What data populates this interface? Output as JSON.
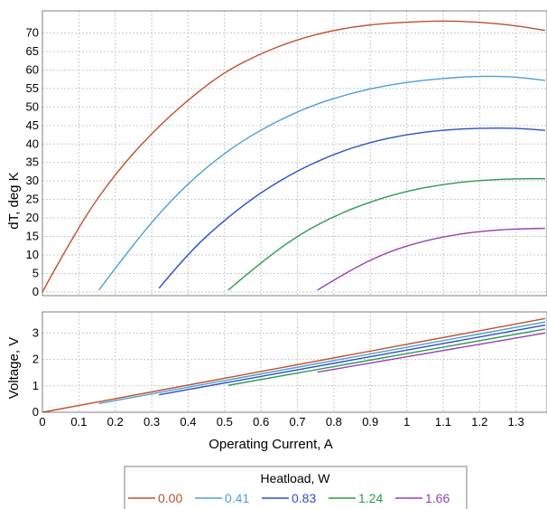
{
  "chart_data": [
    {
      "type": "line",
      "title": "",
      "xlabel": "",
      "ylabel": "dT, deg K",
      "xlim": [
        0,
        1.385
      ],
      "ylim": [
        -1,
        76
      ],
      "x_ticks": [
        "0",
        "0.1",
        "0.2",
        "0.3",
        "0.4",
        "0.5",
        "0.6",
        "0.7",
        "0.8",
        "0.9",
        "1",
        "1.1",
        "1.2",
        "1.3"
      ],
      "y_ticks": [
        "0",
        "5",
        "10",
        "15",
        "20",
        "25",
        "30",
        "35",
        "40",
        "45",
        "50",
        "55",
        "60",
        "65",
        "70"
      ],
      "grid": true,
      "series": [
        {
          "name": "0.00",
          "color": "#c0502a",
          "x": [
            0,
            0.1,
            0.2,
            0.3,
            0.4,
            0.5,
            0.6,
            0.7,
            0.8,
            0.9,
            1.0,
            1.1,
            1.2,
            1.3,
            1.38
          ],
          "y": [
            0,
            18,
            32,
            43,
            52,
            59.5,
            64.5,
            68.3,
            70.8,
            72.3,
            73,
            73.3,
            73,
            72,
            70.7
          ]
        },
        {
          "name": "0.41",
          "color": "#4a9fd8",
          "x": [
            0.155,
            0.25,
            0.35,
            0.45,
            0.55,
            0.65,
            0.75,
            0.85,
            0.95,
            1.05,
            1.15,
            1.2,
            1.25,
            1.3,
            1.38
          ],
          "y": [
            0.5,
            13,
            24.5,
            33.8,
            41,
            46.5,
            50.8,
            53.8,
            56,
            57.3,
            58.1,
            58.3,
            58.3,
            58.1,
            57.2
          ]
        },
        {
          "name": "0.83",
          "color": "#2e4fc8",
          "x": [
            0.32,
            0.4,
            0.5,
            0.6,
            0.7,
            0.8,
            0.9,
            1.0,
            1.1,
            1.2,
            1.3,
            1.38
          ],
          "y": [
            1,
            10.5,
            19.5,
            27,
            32.8,
            37.3,
            40.5,
            42.6,
            43.8,
            44.3,
            44.3,
            43.7
          ]
        },
        {
          "name": "1.24",
          "color": "#2e9a4c",
          "x": [
            0.51,
            0.6,
            0.7,
            0.8,
            0.9,
            1.0,
            1.1,
            1.2,
            1.3,
            1.38
          ],
          "y": [
            0.5,
            8,
            15.2,
            20.5,
            24.4,
            27.3,
            29.1,
            30.2,
            30.6,
            30.6
          ]
        },
        {
          "name": "1.66",
          "color": "#9a3fb5",
          "x": [
            0.755,
            0.85,
            0.95,
            1.05,
            1.15,
            1.25,
            1.33,
            1.38
          ],
          "y": [
            0.5,
            6.2,
            10.9,
            13.9,
            15.8,
            16.8,
            17.1,
            17.2
          ]
        }
      ]
    },
    {
      "type": "line",
      "title": "",
      "xlabel": "Operating Current, A",
      "ylabel": "Voltage, V",
      "xlim": [
        0,
        1.385
      ],
      "ylim": [
        0,
        3.8
      ],
      "x_ticks": [
        "0",
        "0.1",
        "0.2",
        "0.3",
        "0.4",
        "0.5",
        "0.6",
        "0.7",
        "0.8",
        "0.9",
        "1",
        "1.1",
        "1.2",
        "1.3"
      ],
      "y_ticks": [
        "0",
        "1",
        "2",
        "3"
      ],
      "grid": true,
      "series": [
        {
          "name": "0.00",
          "color": "#c0502a",
          "x": [
            0,
            1.38
          ],
          "y": [
            0,
            3.55
          ]
        },
        {
          "name": "0.41",
          "color": "#4a9fd8",
          "x": [
            0.155,
            1.38
          ],
          "y": [
            0.33,
            3.42
          ]
        },
        {
          "name": "0.83",
          "color": "#2e4fc8",
          "x": [
            0.32,
            1.38
          ],
          "y": [
            0.66,
            3.3
          ]
        },
        {
          "name": "1.24",
          "color": "#2e9a4c",
          "x": [
            0.51,
            1.38
          ],
          "y": [
            1.02,
            3.15
          ]
        },
        {
          "name": "1.66",
          "color": "#9a3fb5",
          "x": [
            0.755,
            1.38
          ],
          "y": [
            1.52,
            3.0
          ]
        }
      ]
    }
  ],
  "legend": {
    "title": "Heatload, W",
    "placement": "bottom-center"
  }
}
